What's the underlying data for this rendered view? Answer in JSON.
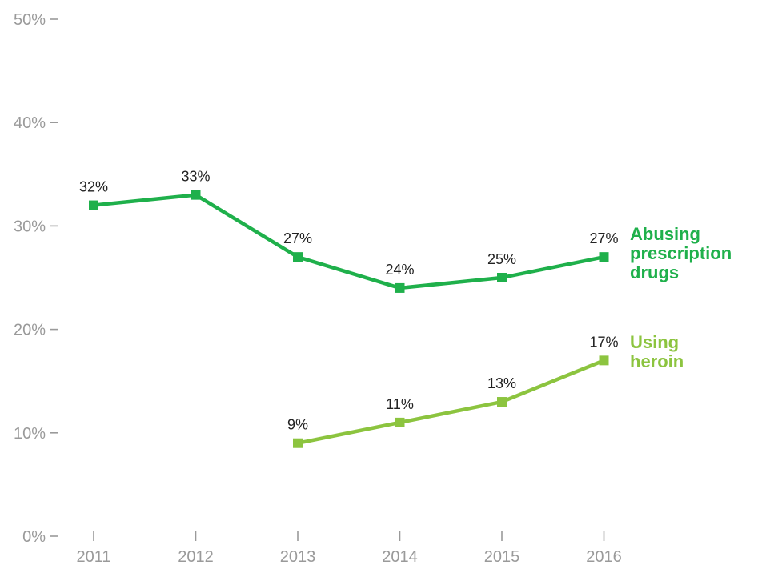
{
  "chart_data": {
    "type": "line",
    "title": "",
    "xlabel": "",
    "ylabel": "",
    "x": [
      "2011",
      "2012",
      "2013",
      "2014",
      "2015",
      "2016"
    ],
    "ylim": [
      0,
      50
    ],
    "yticks": [
      0,
      10,
      20,
      30,
      40,
      50
    ],
    "ytick_labels": [
      "0%",
      "10%",
      "20%",
      "30%",
      "40%",
      "50%"
    ],
    "grid": false,
    "legend": "inline-right",
    "series": [
      {
        "name": "Abusing prescription drugs",
        "name_lines": [
          "Abusing",
          "prescription",
          "drugs"
        ],
        "color": "#1fb04b",
        "values": [
          32,
          33,
          27,
          24,
          25,
          27
        ],
        "labels": [
          "32%",
          "33%",
          "27%",
          "24%",
          "25%",
          "27%"
        ]
      },
      {
        "name": "Using heroin",
        "name_lines": [
          "Using",
          "heroin"
        ],
        "color": "#8cc43f",
        "values": [
          null,
          null,
          9,
          11,
          13,
          17
        ],
        "labels": [
          "",
          "",
          "9%",
          "11%",
          "13%",
          "17%"
        ]
      }
    ]
  }
}
